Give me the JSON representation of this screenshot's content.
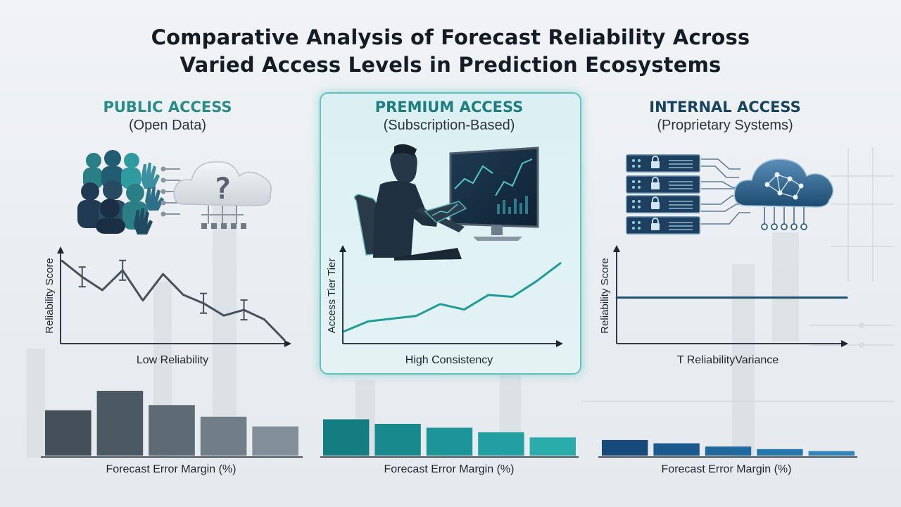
{
  "title_line1": "Comparative Analysis of Forecast Reliability Across",
  "title_line2": "Varied Access Levels in Prediction Ecosystems",
  "colors": {
    "public_heading": "#2a8c8a",
    "premium_heading": "#1d7d80",
    "internal_heading": "#17455f",
    "public_bars": "#4a5661",
    "premium_bars": "#1f8f93",
    "internal_bars": "#1d5688",
    "premium_line": "#1f9c9a",
    "internal_line": "#1d4e6e"
  },
  "panels": {
    "public": {
      "heading": "PUBLIC ACCESS",
      "subheading": "(Open Data)",
      "icon": "crowd-and-cloud-question-icon",
      "line_caption": "Low Reliability",
      "bar_caption": "Forecast Error Margin (%)"
    },
    "premium": {
      "heading": "PREMIUM ACCESS",
      "subheading": "(Subscription-Based)",
      "icon": "analyst-at-monitor-icon",
      "line_caption": "High Consistency",
      "bar_caption": "Forecast Error Margin (%)"
    },
    "internal": {
      "heading": "INTERNAL ACCESS",
      "subheading": "(Proprietary Systems)",
      "icon": "secure-servers-and-cloud-network-icon",
      "line_caption": "T ReliabilityVariance",
      "bar_caption": "Forecast Error Margin (%)"
    }
  },
  "chart_data": [
    {
      "type": "line",
      "panel": "public",
      "ylabel": "Reliability Score",
      "xlabel": "",
      "ylim": [
        0,
        10
      ],
      "x": [
        1,
        2,
        3,
        4,
        5,
        6,
        7,
        8,
        9,
        10,
        11,
        12
      ],
      "values": [
        8.7,
        7.0,
        5.6,
        7.7,
        4.5,
        7.3,
        5.1,
        4.2,
        2.9,
        3.5,
        2.5,
        0.3
      ],
      "error_bar_points": [
        2,
        4,
        8,
        10
      ]
    },
    {
      "type": "line",
      "panel": "premium",
      "ylabel": "Access Tier Tier",
      "xlabel": "",
      "ylim": [
        0,
        10
      ],
      "x": [
        1,
        2,
        3,
        4,
        5,
        6,
        7,
        8,
        9,
        10
      ],
      "values": [
        1.2,
        2.3,
        2.6,
        2.9,
        4.2,
        3.6,
        5.2,
        5.0,
        6.7,
        8.7
      ]
    },
    {
      "type": "line",
      "panel": "internal",
      "ylabel": "Reliability Score",
      "xlabel": "",
      "ylim": [
        0,
        10
      ],
      "x": [
        0,
        1
      ],
      "values": [
        4.8,
        4.8
      ]
    },
    {
      "type": "bar",
      "panel": "public",
      "xlabel": "Forecast Error Margin (%)",
      "ylim": [
        0,
        10
      ],
      "values": [
        7.0,
        10.0,
        7.8,
        6.0,
        4.5
      ],
      "colors": [
        "#444f59",
        "#4c5862",
        "#5e6a74",
        "#717d87",
        "#828e98"
      ]
    },
    {
      "type": "bar",
      "panel": "premium",
      "xlabel": "Forecast Error Margin (%)",
      "ylim": [
        0,
        10
      ],
      "values": [
        5.6,
        4.9,
        4.3,
        3.6,
        2.8
      ],
      "colors": [
        "#137d82",
        "#18898d",
        "#1d9497",
        "#22a0a1",
        "#2aacab"
      ]
    },
    {
      "type": "bar",
      "panel": "internal",
      "xlabel": "Forecast Error Margin (%)",
      "ylim": [
        0,
        10
      ],
      "values": [
        2.4,
        1.9,
        1.4,
        1.0,
        0.7
      ],
      "colors": [
        "#164a7c",
        "#1b5a8e",
        "#20699e",
        "#2677ac",
        "#2f85b8"
      ]
    }
  ]
}
